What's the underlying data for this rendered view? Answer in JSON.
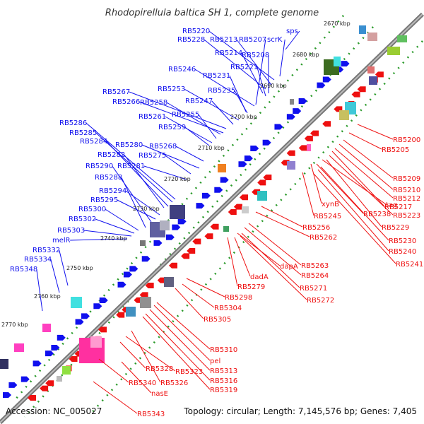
{
  "title": "Rhodopirellula baltica SH 1, complete genome",
  "footer": {
    "accession": "Accession: NC_005027",
    "summary": "Topology: circular; Length: 7,145,576 bp; Genes: 7,405"
  },
  "colors": {
    "forward": "#1010ee",
    "reverse": "#ee1010",
    "backbone": "#888888",
    "dots": "#2a9a2a"
  },
  "ticks": [
    "2670 kbp",
    "2680 kbp",
    "2690 kbp",
    "2700 kbp",
    "2710 kbp",
    "2720 kbp",
    "2730 kbp",
    "2740 kbp",
    "2750 kbp",
    "2760 kbp",
    "2770 kbp"
  ],
  "blue_labels": [
    "sps",
    "RB5220",
    "RB5228",
    "RB5213",
    "RB5207",
    "scrK",
    "RB5214",
    "RB5208",
    "RB5221",
    "RB5246",
    "RB5231",
    "RB5235",
    "RB5253",
    "RB5267",
    "RB5247",
    "RB5266",
    "RB5258",
    "RB5255",
    "RB5261",
    "RB5259",
    "RB5286",
    "RB5285",
    "RB5284",
    "RB5280",
    "RB5268",
    "RB5282",
    "RB5275",
    "RB5290",
    "RB5281",
    "RB5288",
    "RB5294",
    "RB5295",
    "RB5300",
    "RB5302",
    "RB5303",
    "melR",
    "RB5332",
    "RB5334",
    "RB5348"
  ],
  "red_labels": [
    "RB5200",
    "RB5205",
    "RB5209",
    "RB5210",
    "RB5212",
    "RB5217",
    "RB5223",
    "tag",
    "xynB",
    "RB5238",
    "RB5229",
    "RB5245",
    "RB5230",
    "RB5240",
    "RB5241",
    "RB5256",
    "RB5262",
    "RB5263",
    "RB5264",
    "dapA",
    "dadA",
    "RB5271",
    "RB5279",
    "RB5272",
    "RB5298",
    "RB5304",
    "RB5305",
    "RB5310",
    "pel",
    "RB5313",
    "RB5316",
    "RB5319",
    "RB5328",
    "RB5323",
    "RB5326",
    "RB5340",
    "nasE",
    "RB5343"
  ]
}
